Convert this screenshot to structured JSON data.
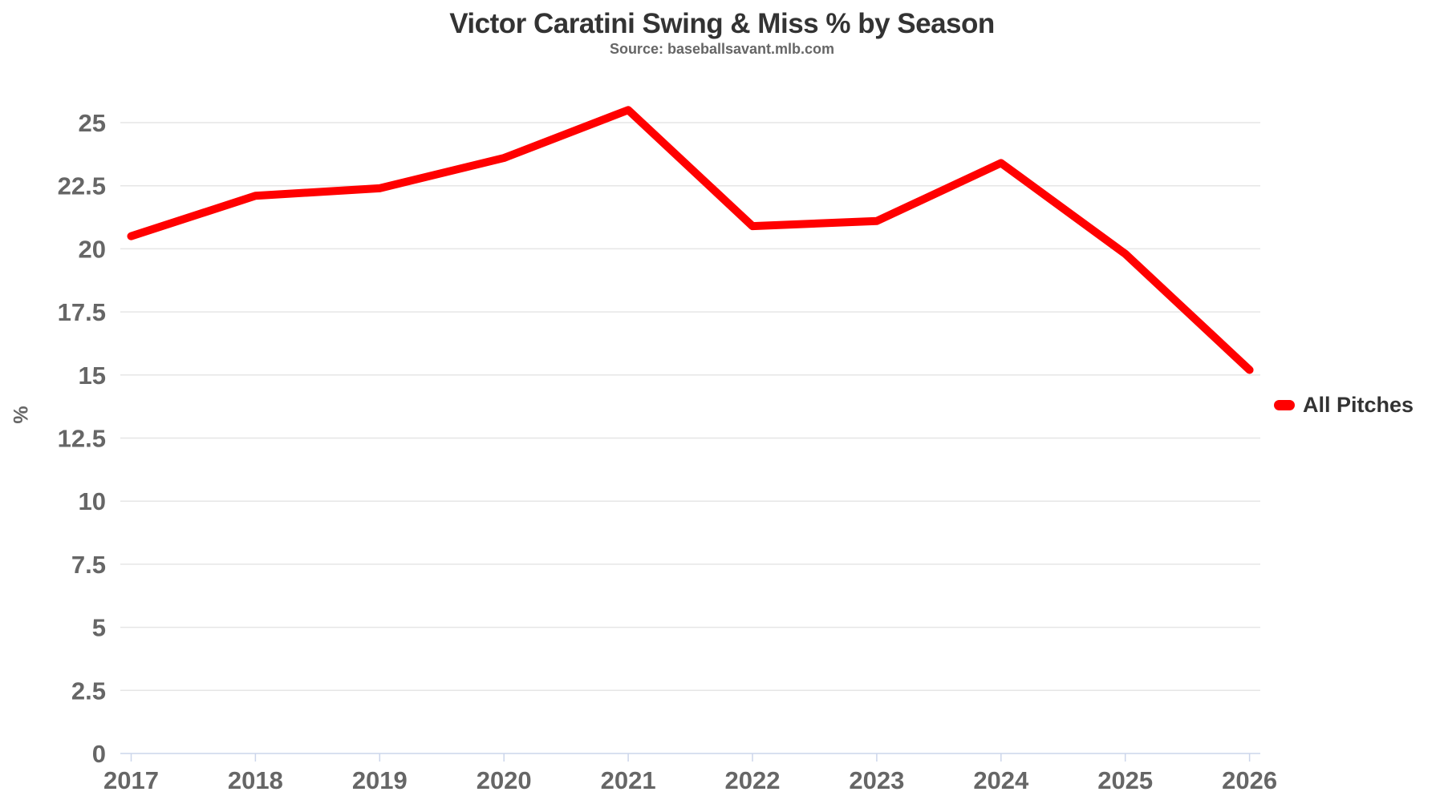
{
  "header": {
    "title": "Victor Caratini Swing & Miss % by Season",
    "subtitle": "Source: baseballsavant.mlb.com"
  },
  "legend": {
    "label": "All Pitches",
    "position": "right-middle"
  },
  "y_axis": {
    "title": "%",
    "tick_labels": [
      "0",
      "2.5",
      "5",
      "7.5",
      "10",
      "12.5",
      "15",
      "17.5",
      "20",
      "22.5",
      "25"
    ]
  },
  "x_axis": {
    "tick_labels": [
      "2017",
      "2018",
      "2019",
      "2020",
      "2021",
      "2022",
      "2023",
      "2024",
      "2025",
      "2026"
    ]
  },
  "colors": {
    "line": "#ff0000",
    "grid": "#e6e6e6",
    "axis_line": "#ccd6eb",
    "axis_label": "#666666",
    "title": "#333333",
    "subtitle": "#666666"
  },
  "chart_data": {
    "type": "line",
    "title": "Victor Caratini Swing & Miss % by Season",
    "subtitle": "Source: baseballsavant.mlb.com",
    "xlabel": "",
    "ylabel": "%",
    "categories": [
      2017,
      2018,
      2019,
      2020,
      2021,
      2022,
      2023,
      2024,
      2025,
      2026
    ],
    "series": [
      {
        "name": "All Pitches",
        "color": "#ff0000",
        "values": [
          20.5,
          22.1,
          22.4,
          23.6,
          25.5,
          20.9,
          21.1,
          23.4,
          19.8,
          15.2
        ]
      }
    ],
    "ylim": [
      0,
      25
    ],
    "ytick_step": 2.5,
    "grid": true,
    "legend_position": "right-middle",
    "line_width": 10
  }
}
